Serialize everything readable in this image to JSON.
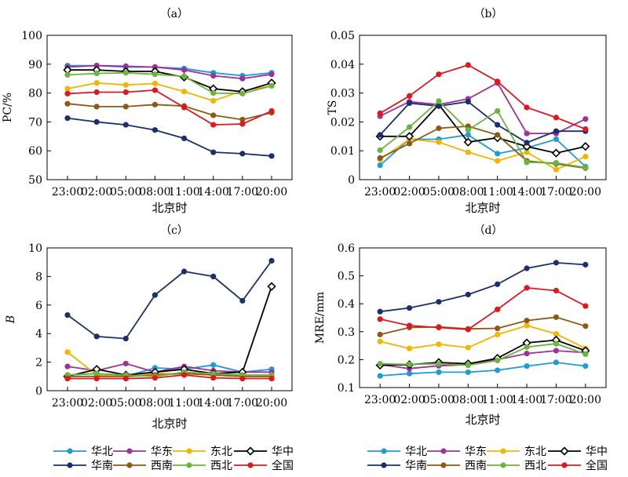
{
  "series_defs": [
    {
      "key": "huabei",
      "name": "华北",
      "color": "#1f9bd7",
      "marker": "dot"
    },
    {
      "key": "huadong",
      "name": "华东",
      "color": "#a0309a",
      "marker": "dot"
    },
    {
      "key": "dongbei",
      "name": "东北",
      "color": "#f5b400",
      "marker": "dot"
    },
    {
      "key": "huazhong",
      "name": "华中",
      "color": "#000000",
      "marker": "diamond"
    },
    {
      "key": "huanan",
      "name": "华南",
      "color": "#1b2f6b",
      "marker": "dot"
    },
    {
      "key": "xinan",
      "name": "西南",
      "color": "#8b5a14",
      "marker": "dot"
    },
    {
      "key": "xibei",
      "name": "西北",
      "color": "#6db33f",
      "marker": "dot"
    },
    {
      "key": "quanguo",
      "name": "全国",
      "color": "#e2161d",
      "marker": "dot"
    }
  ],
  "chart_data": [
    {
      "type": "line",
      "panel": "（a）",
      "ylabel": "PC/%",
      "xlabel": "北京时",
      "categories": [
        "23:00",
        "02:00",
        "05:00",
        "08:00",
        "11:00",
        "14:00",
        "17:00",
        "20:00"
      ],
      "ylim": [
        50,
        100
      ],
      "yticks": [
        "50",
        "60",
        "70",
        "80",
        "90",
        "100"
      ],
      "series": [
        {
          "name": "华北",
          "values": [
            89.5,
            89.5,
            89.0,
            89.0,
            88.5,
            87.0,
            86.0,
            87.0
          ]
        },
        {
          "name": "华东",
          "values": [
            89.0,
            89.5,
            89.3,
            89.0,
            88.0,
            86.0,
            85.0,
            86.5
          ]
        },
        {
          "name": "东北",
          "values": [
            81.5,
            83.5,
            82.8,
            83.3,
            80.5,
            77.3,
            80.8,
            82.5
          ]
        },
        {
          "name": "华中",
          "values": [
            88.0,
            88.0,
            87.5,
            87.5,
            85.5,
            81.5,
            80.5,
            83.5
          ]
        },
        {
          "name": "华南",
          "values": [
            71.3,
            70.0,
            69.0,
            67.2,
            64.3,
            59.5,
            59.0,
            58.2
          ]
        },
        {
          "name": "西南",
          "values": [
            76.3,
            75.3,
            75.3,
            76.0,
            75.5,
            72.3,
            70.8,
            73.2
          ]
        },
        {
          "name": "西北",
          "values": [
            86.3,
            86.8,
            87.0,
            86.5,
            85.8,
            80.0,
            79.8,
            82.5
          ]
        },
        {
          "name": "全国",
          "values": [
            79.8,
            80.3,
            80.3,
            81.0,
            75.0,
            69.0,
            69.3,
            73.8
          ]
        }
      ]
    },
    {
      "type": "line",
      "panel": "（b）",
      "ylabel": "TS",
      "xlabel": "北京时",
      "categories": [
        "23:00",
        "02:00",
        "05:00",
        "08:00",
        "11:00",
        "14:00",
        "17:00",
        "20:00"
      ],
      "ylim": [
        0,
        0.05
      ],
      "yticks": [
        "0",
        "0.01",
        "0.02",
        "0.03",
        "0.04",
        "0.05"
      ],
      "series": [
        {
          "name": "华北",
          "values": [
            0.005,
            0.014,
            0.014,
            0.0155,
            0.009,
            0.011,
            0.014,
            0.0045
          ]
        },
        {
          "name": "华东",
          "values": [
            0.022,
            0.027,
            0.026,
            0.028,
            0.0335,
            0.016,
            0.016,
            0.021
          ]
        },
        {
          "name": "东北",
          "values": [
            0.007,
            0.014,
            0.013,
            0.0095,
            0.0065,
            0.0095,
            0.0035,
            0.008
          ]
        },
        {
          "name": "华中",
          "values": [
            0.015,
            0.015,
            0.026,
            0.013,
            0.0145,
            0.0115,
            0.0092,
            0.0115
          ]
        },
        {
          "name": "华南",
          "values": [
            0.0155,
            0.0265,
            0.0255,
            0.027,
            0.019,
            0.0128,
            0.0168,
            0.0168
          ]
        },
        {
          "name": "西南",
          "values": [
            0.0075,
            0.0125,
            0.0178,
            0.0185,
            0.0155,
            0.0065,
            0.0055,
            0.004
          ]
        },
        {
          "name": "西北",
          "values": [
            0.0102,
            0.0182,
            0.0272,
            0.0172,
            0.0238,
            0.006,
            0.0058,
            0.0042
          ]
        },
        {
          "name": "全国",
          "values": [
            0.023,
            0.029,
            0.0365,
            0.0397,
            0.034,
            0.025,
            0.0215,
            0.0175
          ]
        }
      ]
    },
    {
      "type": "line",
      "panel": "（c）",
      "ylabel": "B",
      "xlabel": "北京时",
      "categories": [
        "23:00",
        "02:00",
        "05:00",
        "08:00",
        "11:00",
        "14:00",
        "17:00",
        "20:00"
      ],
      "ylim": [
        0,
        10
      ],
      "yticks": [
        "0",
        "2",
        "4",
        "6",
        "8",
        "10"
      ],
      "series": [
        {
          "name": "华北",
          "values": [
            1.1,
            1.2,
            1.0,
            1.6,
            1.5,
            1.8,
            1.3,
            1.5
          ]
        },
        {
          "name": "华东",
          "values": [
            1.7,
            1.4,
            1.9,
            1.3,
            1.7,
            1.4,
            1.3,
            1.3
          ]
        },
        {
          "name": "东北",
          "values": [
            2.7,
            1.1,
            1.0,
            1.2,
            1.2,
            1.1,
            1.0,
            1.0
          ]
        },
        {
          "name": "华中",
          "values": [
            1.0,
            1.5,
            1.1,
            1.3,
            1.5,
            1.2,
            1.3,
            7.3
          ]
        },
        {
          "name": "华南",
          "values": [
            5.3,
            3.8,
            3.65,
            6.7,
            8.35,
            8.0,
            6.3,
            9.1
          ]
        },
        {
          "name": "西南",
          "values": [
            1.0,
            1.0,
            1.0,
            1.1,
            1.2,
            1.1,
            1.0,
            1.0
          ]
        },
        {
          "name": "西北",
          "values": [
            1.1,
            1.2,
            1.1,
            1.0,
            1.3,
            1.2,
            1.1,
            1.1
          ]
        },
        {
          "name": "全国",
          "values": [
            0.85,
            0.85,
            0.85,
            0.9,
            1.1,
            0.9,
            0.85,
            0.85
          ]
        }
      ]
    },
    {
      "type": "line",
      "panel": "（d）",
      "ylabel": "MRE/mm",
      "xlabel": "北京时",
      "categories": [
        "23:00",
        "02:00",
        "05:00",
        "08:00",
        "11:00",
        "14:00",
        "17:00",
        "20:00"
      ],
      "ylim": [
        0.1,
        0.6
      ],
      "yticks": [
        "0.1",
        "0.2",
        "0.3",
        "0.4",
        "0.5",
        "0.6"
      ],
      "series": [
        {
          "name": "华北",
          "values": [
            0.142,
            0.15,
            0.155,
            0.155,
            0.162,
            0.177,
            0.19,
            0.177
          ]
        },
        {
          "name": "华东",
          "values": [
            0.182,
            0.168,
            0.178,
            0.182,
            0.2,
            0.222,
            0.232,
            0.225
          ]
        },
        {
          "name": "东北",
          "values": [
            0.265,
            0.24,
            0.255,
            0.243,
            0.29,
            0.322,
            0.292,
            0.24
          ]
        },
        {
          "name": "华中",
          "values": [
            0.18,
            0.182,
            0.19,
            0.185,
            0.205,
            0.26,
            0.27,
            0.232
          ]
        },
        {
          "name": "华南",
          "values": [
            0.372,
            0.385,
            0.407,
            0.433,
            0.47,
            0.527,
            0.547,
            0.54
          ]
        },
        {
          "name": "西南",
          "values": [
            0.29,
            0.315,
            0.317,
            0.31,
            0.312,
            0.34,
            0.352,
            0.32
          ]
        },
        {
          "name": "西北",
          "values": [
            0.185,
            0.183,
            0.185,
            0.18,
            0.197,
            0.245,
            0.257,
            0.22
          ]
        },
        {
          "name": "全国",
          "values": [
            0.345,
            0.322,
            0.315,
            0.308,
            0.38,
            0.457,
            0.447,
            0.392
          ]
        }
      ]
    }
  ]
}
